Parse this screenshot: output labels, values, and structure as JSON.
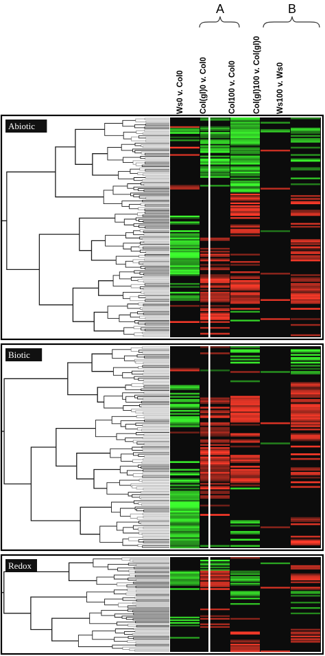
{
  "groups": [
    {
      "label": "A",
      "columns": [
        1,
        2
      ]
    },
    {
      "label": "B",
      "columns": [
        3,
        4
      ]
    }
  ],
  "columns": [
    "Ws0 v. Col0",
    "Col(gl)0 v. Col0",
    "Col100 v. Col0",
    "Col(gl)100 v. Col(gl)0",
    "Ws100 v. Ws0"
  ],
  "panels": [
    {
      "label": "Abiotic",
      "rows": 150,
      "seed": 11,
      "profile": [
        [
          0.0,
          0.05,
          "K",
          "g",
          "G",
          "K",
          "g"
        ],
        [
          0.05,
          0.12,
          "g",
          "G",
          "G",
          "K",
          "G"
        ],
        [
          0.12,
          0.28,
          "K",
          "G",
          "G",
          "K",
          "g"
        ],
        [
          0.28,
          0.35,
          "r",
          "K",
          "g",
          "K",
          "K"
        ],
        [
          0.35,
          0.45,
          "K",
          "K",
          "R",
          "K",
          "R"
        ],
        [
          0.45,
          0.55,
          "g",
          "K",
          "r",
          "K",
          "r"
        ],
        [
          0.55,
          0.62,
          "G",
          "r",
          "K",
          "K",
          "R"
        ],
        [
          0.62,
          0.72,
          "G",
          "r",
          "r",
          "K",
          "r"
        ],
        [
          0.72,
          0.85,
          "g",
          "R",
          "R",
          "K",
          "R"
        ],
        [
          0.85,
          1.0,
          "K",
          "r",
          "K",
          "K",
          "r"
        ]
      ]
    },
    {
      "label": "Biotic",
      "rows": 130,
      "seed": 37,
      "profile": [
        [
          0.0,
          0.1,
          "K",
          "K",
          "g",
          "K",
          "g"
        ],
        [
          0.1,
          0.18,
          "r",
          "K",
          "K",
          "K",
          "K"
        ],
        [
          0.18,
          0.25,
          "g",
          "K",
          "K",
          "K",
          "R"
        ],
        [
          0.25,
          0.4,
          "G",
          "r",
          "R",
          "K",
          "R"
        ],
        [
          0.4,
          0.55,
          "K",
          "R",
          "r",
          "K",
          "r"
        ],
        [
          0.55,
          0.7,
          "g",
          "R",
          "R",
          "K",
          "r"
        ],
        [
          0.7,
          0.85,
          "G",
          "r",
          "K",
          "K",
          "K"
        ],
        [
          0.85,
          1.0,
          "G",
          "K",
          "g",
          "K",
          "r"
        ]
      ]
    },
    {
      "label": "Redox",
      "rows": 70,
      "seed": 73,
      "profile": [
        [
          0.0,
          0.15,
          "K",
          "g",
          "K",
          "K",
          "r"
        ],
        [
          0.15,
          0.35,
          "G",
          "R",
          "g",
          "K",
          "r"
        ],
        [
          0.35,
          0.55,
          "K",
          "K",
          "g",
          "K",
          "g"
        ],
        [
          0.55,
          0.75,
          "g",
          "r",
          "K",
          "K",
          "K"
        ],
        [
          0.75,
          0.9,
          "K",
          "K",
          "r",
          "K",
          "r"
        ],
        [
          0.9,
          1.0,
          "K",
          "K",
          "R",
          "K",
          "K"
        ]
      ]
    }
  ],
  "colors": {
    "background": "#0c0c0c",
    "up": "#ff3b2a",
    "down": "#3dff2e",
    "separator": "#ffffff",
    "tree": "#1a1a1a",
    "tree_light": "#9a9a9a",
    "frame": "#000000",
    "label_bg": "#111111"
  }
}
